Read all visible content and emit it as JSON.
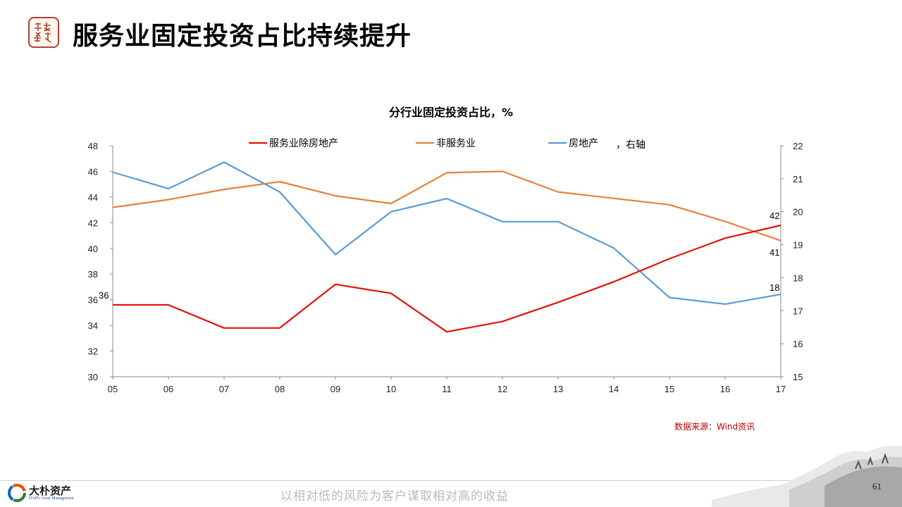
{
  "slide": {
    "title": "服务业固定投资占比持续提升",
    "page_number": "61",
    "source": "数据来源：Wind资讯",
    "brand_name": "大朴资产",
    "brand_subtitle": "DAPU Asset Management",
    "slogan": "以相对低的风险为客户谋取相对高的收益",
    "logo_seal_text": "大朴资产"
  },
  "colors": {
    "series_red": "#e3120b",
    "series_orange": "#e8803a",
    "series_blue": "#5b9bd5",
    "axis": "#888888",
    "source": "#c00000"
  },
  "chart_data": {
    "type": "line",
    "title": "分行业固定投资占比，%",
    "x": [
      "05",
      "06",
      "07",
      "08",
      "09",
      "10",
      "11",
      "12",
      "13",
      "14",
      "15",
      "16",
      "17"
    ],
    "left_axis": {
      "ticks": [
        30,
        32,
        34,
        36,
        38,
        40,
        42,
        44,
        46,
        48
      ],
      "ylim": [
        30,
        48
      ]
    },
    "right_axis": {
      "ticks": [
        15,
        16,
        17,
        18,
        19,
        20,
        21,
        22
      ],
      "ylim": [
        15,
        22
      ],
      "label": "，右轴"
    },
    "legend_position": "top",
    "grid": false,
    "series": [
      {
        "name": "服务业除房地产",
        "axis": "left",
        "values": [
          35.6,
          35.6,
          33.8,
          33.8,
          37.2,
          36.5,
          33.5,
          34.3,
          35.8,
          37.4,
          39.2,
          40.8,
          41.8
        ],
        "end_label": "42",
        "start_label": "36"
      },
      {
        "name": "非服务业",
        "axis": "left",
        "values": [
          43.2,
          43.8,
          44.6,
          45.2,
          44.1,
          43.5,
          45.9,
          46.0,
          44.4,
          43.9,
          43.4,
          42.1,
          40.6
        ],
        "end_label": "41"
      },
      {
        "name": "房地产",
        "axis": "right",
        "values": [
          21.2,
          20.7,
          21.5,
          20.6,
          18.7,
          20.0,
          20.4,
          19.7,
          19.7,
          18.9,
          17.4,
          17.2,
          17.5
        ],
        "end_label": "18"
      }
    ]
  }
}
